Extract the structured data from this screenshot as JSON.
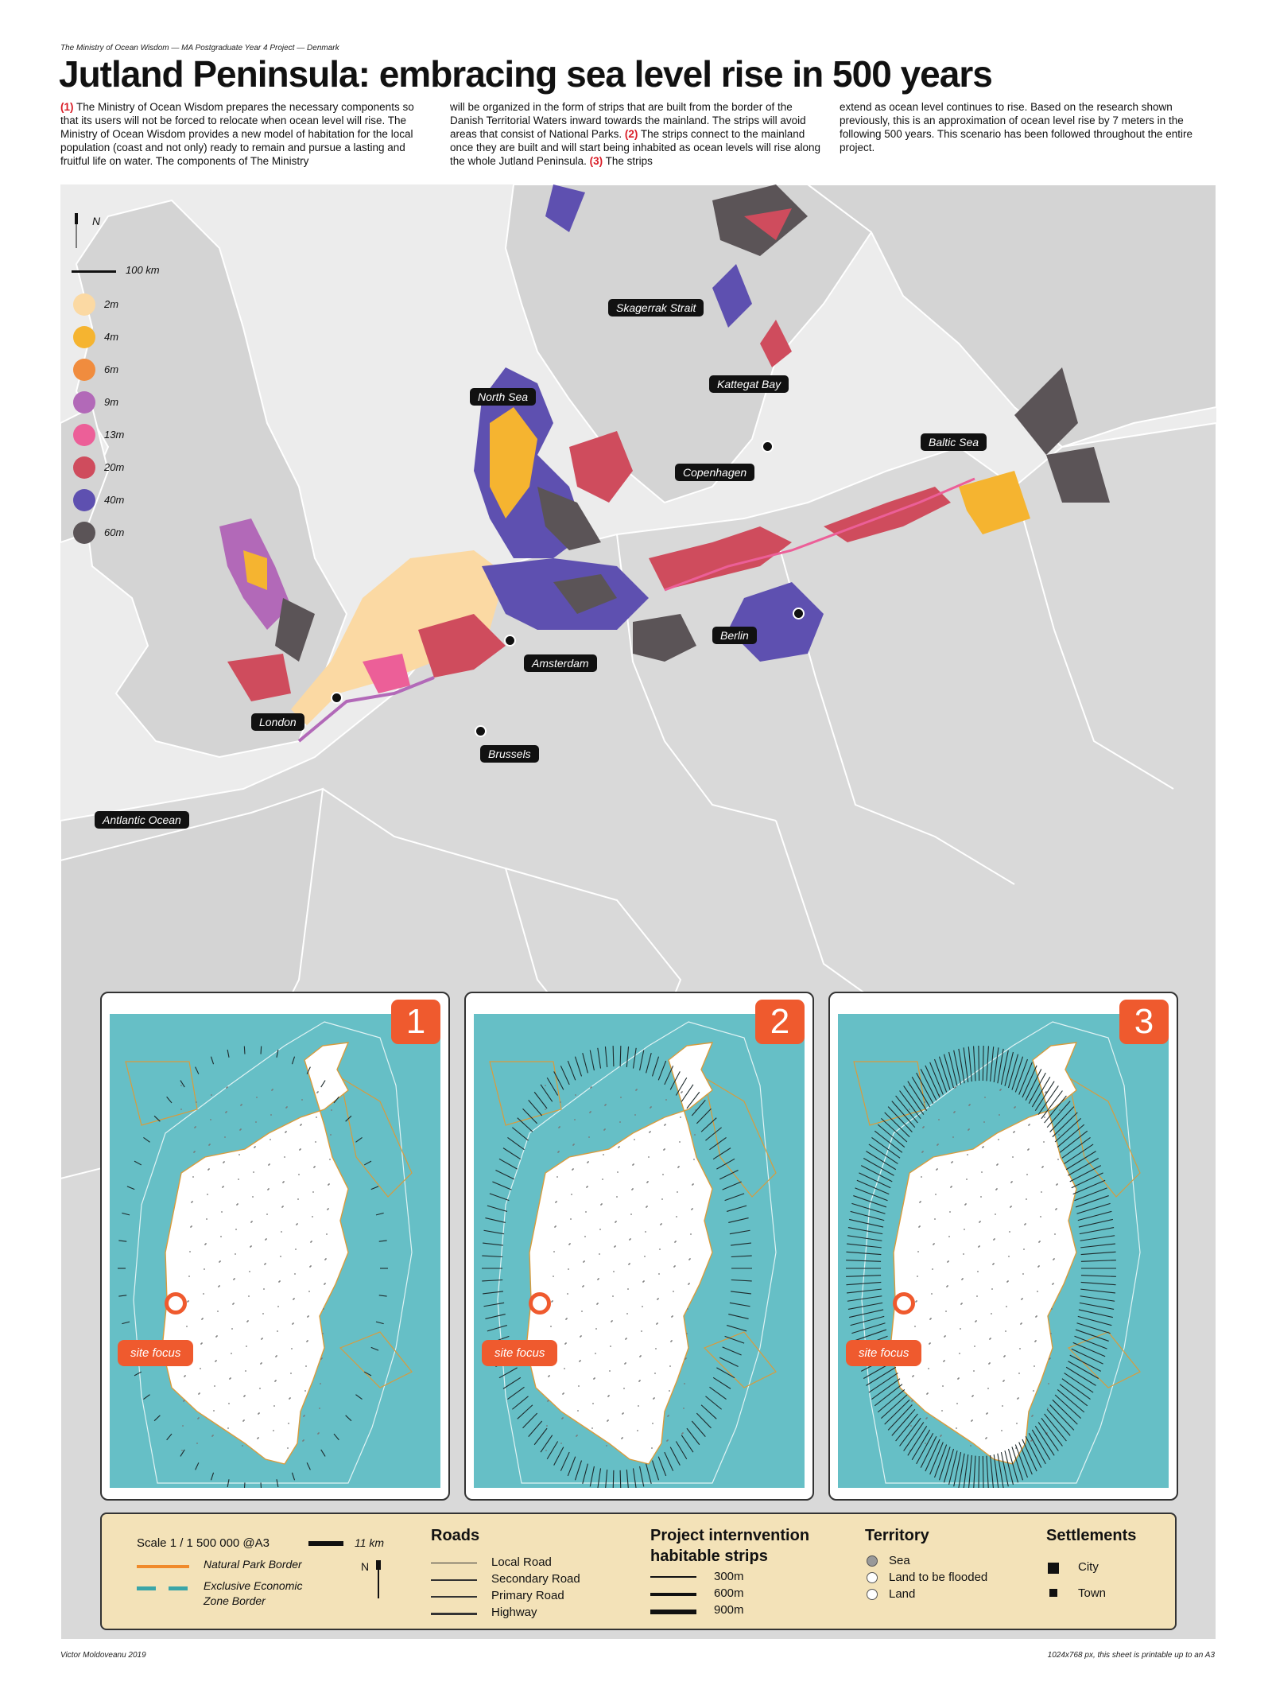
{
  "header": {
    "subtitle": "The Ministry of Ocean Wisdom — MA Postgraduate Year 4 Project — Denmark",
    "title": "Jutland Peninsula: embracing sea level rise in 500 years",
    "col1_num1": "(1)",
    "col1_text": "The Ministry of Ocean Wisdom prepares the necessary components so that its users will not be forced to relocate when ocean level will rise. The Ministry of Ocean Wisdom provides a new model of habitation for the local population (coast and not only) ready to remain and pursue a lasting and fruitful life on water. The components of The Ministry",
    "col2_text_a": "will be organized in the form of strips that are built from the border of the Danish Territorial Waters inward towards the mainland. The strips will avoid areas that consist of National Parks.",
    "col2_num2": "(2)",
    "col2_text_b": "The strips connect to the mainland once they are built and will start being inhabited as ocean levels will rise along the whole Jutland Peninsula.",
    "col2_num3": "(3)",
    "col2_text_c": "The strips",
    "col3_text": "extend as ocean level continues to rise. Based on the research shown previously, this is an approximation of ocean level rise by 7 meters in the following 500 years. This scenario has been followed throughout the entire project."
  },
  "map": {
    "north": "N",
    "scale": "100 km",
    "legend": [
      {
        "label": "2m",
        "color": "#fbd9a3"
      },
      {
        "label": "4m",
        "color": "#f5b430"
      },
      {
        "label": "6m",
        "color": "#f08c3e"
      },
      {
        "label": "9m",
        "color": "#b269b8"
      },
      {
        "label": "13m",
        "color": "#ec5f98"
      },
      {
        "label": "20m",
        "color": "#cf4c5d"
      },
      {
        "label": "40m",
        "color": "#5e50b0"
      },
      {
        "label": "60m",
        "color": "#5b5457"
      }
    ],
    "labels": {
      "skagerrak": "Skagerrak Strait",
      "north_sea": "North Sea",
      "kattegat": "Kattegat Bay",
      "baltic": "Baltic Sea",
      "copenhagen": "Copenhagen",
      "amsterdam": "Amsterdam",
      "berlin": "Berlin",
      "london": "London",
      "brussels": "Brussels",
      "atlantic": "Antlantic Ocean"
    }
  },
  "panels": [
    {
      "number": "1",
      "site_focus": "site focus"
    },
    {
      "number": "2",
      "site_focus": "site focus"
    },
    {
      "number": "3",
      "site_focus": "site focus"
    }
  ],
  "legend_bottom": {
    "scale": "Scale 1 / 1 500 000 @A3",
    "scale_km": "11 km",
    "north": "N",
    "natural_park": "Natural Park Border",
    "eez_line1": "Exclusive Economic",
    "eez_line2": "Zone Border",
    "roads_title": "Roads",
    "roads": [
      "Local Road",
      "Secondary Road",
      "Primary Road",
      "Highway"
    ],
    "strips_title_1": "Project internvention",
    "strips_title_2": "habitable strips",
    "strips": [
      "300m",
      "600m",
      "900m"
    ],
    "territory_title": "Territory",
    "territory": [
      "Sea",
      "Land to be flooded",
      "Land"
    ],
    "settlements_title": "Settlements",
    "settlements": [
      "City",
      "Town"
    ],
    "colors": {
      "natural_park": "#f08a2a",
      "eez": "#3aa5a8"
    }
  },
  "footer": {
    "author": "Victor Moldoveanu 2019",
    "note": "1024x768 px, this sheet is printable up to an A3"
  }
}
